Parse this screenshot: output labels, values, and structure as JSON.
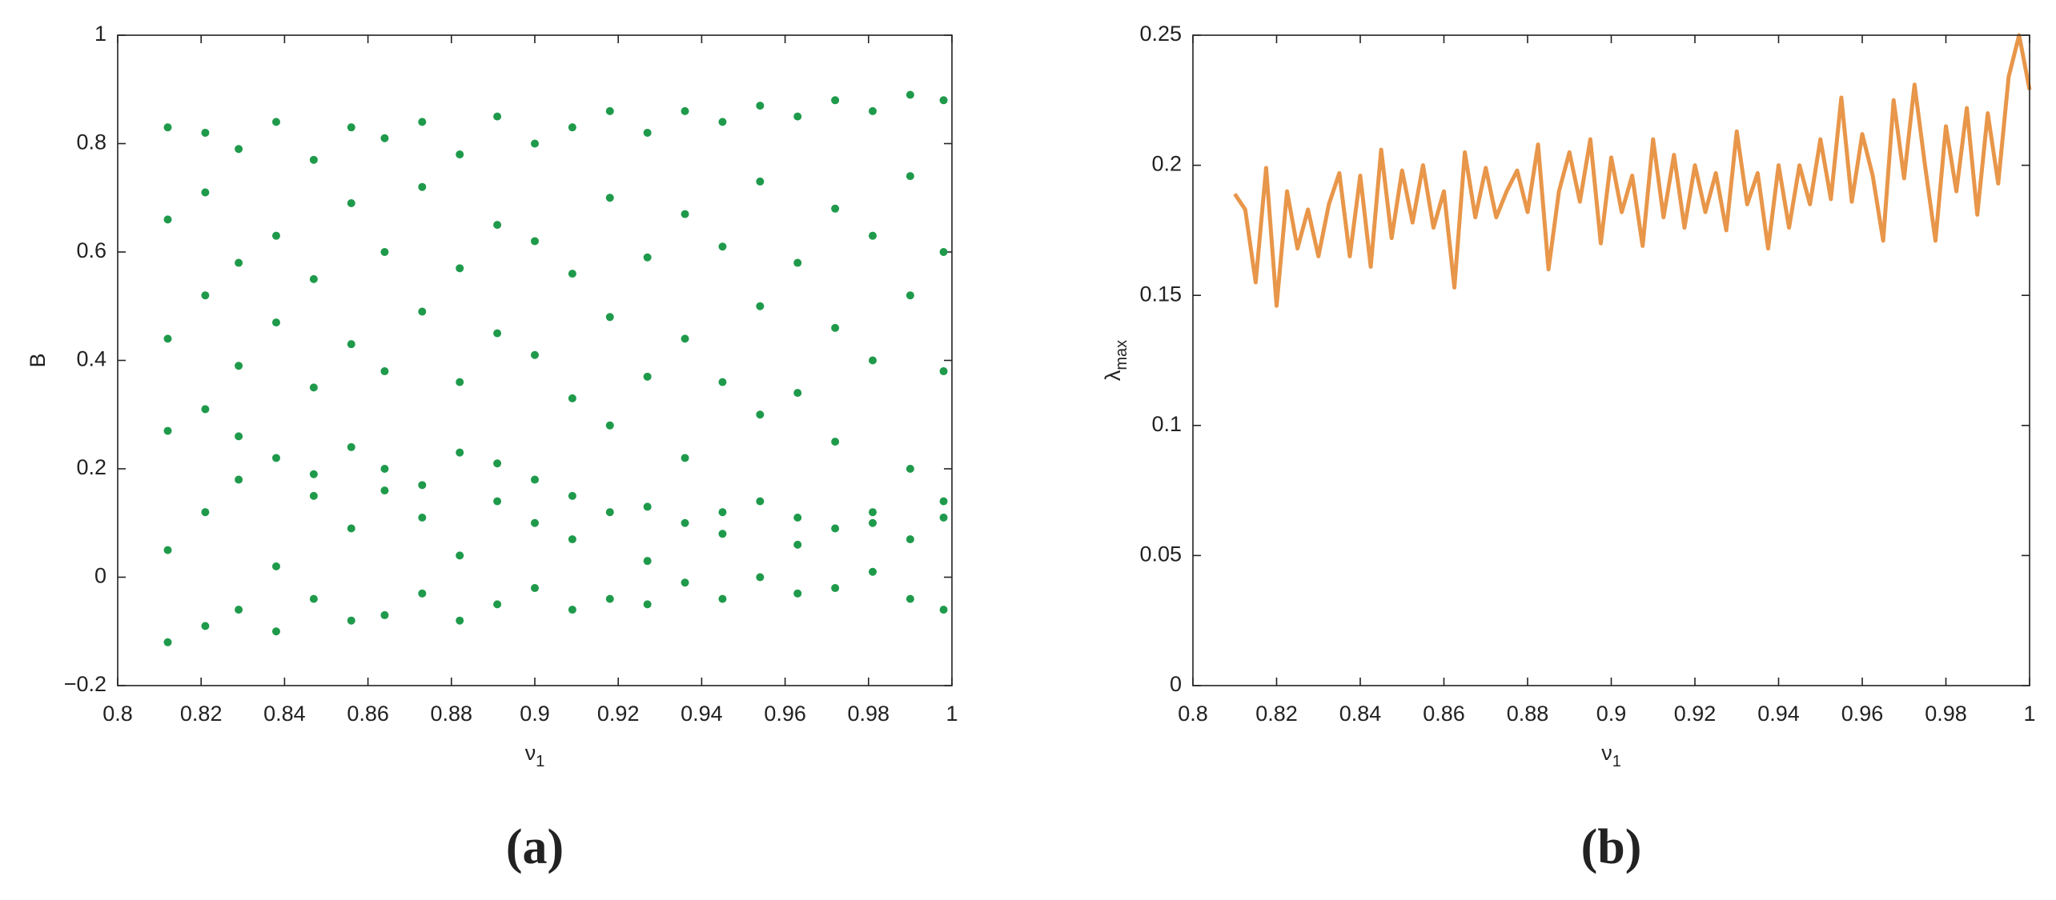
{
  "chart_data": [
    {
      "type": "scatter",
      "caption": "(a)",
      "x_label": {
        "base": "ν",
        "sub": "1"
      },
      "y_label": "B",
      "color": "#1f9a4b",
      "xlim": [
        0.8,
        1
      ],
      "xticks": [
        0.8,
        0.82,
        0.84,
        0.86,
        0.88,
        0.9,
        0.92,
        0.94,
        0.96,
        0.98,
        1
      ],
      "ylim": [
        -0.2,
        1
      ],
      "yticks": [
        {
          "value": -0.2,
          "label": "−0.2"
        },
        0,
        0.2,
        0.4,
        0.6,
        0.8,
        1
      ],
      "x": [
        0.812,
        0.812,
        0.812,
        0.812,
        0.812,
        0.812,
        0.821,
        0.821,
        0.821,
        0.821,
        0.821,
        0.821,
        0.829,
        0.829,
        0.829,
        0.829,
        0.829,
        0.829,
        0.838,
        0.838,
        0.838,
        0.838,
        0.838,
        0.838,
        0.847,
        0.847,
        0.847,
        0.847,
        0.847,
        0.847,
        0.856,
        0.856,
        0.856,
        0.856,
        0.856,
        0.856,
        0.864,
        0.864,
        0.864,
        0.864,
        0.864,
        0.864,
        0.873,
        0.873,
        0.873,
        0.873,
        0.873,
        0.873,
        0.882,
        0.882,
        0.882,
        0.882,
        0.882,
        0.882,
        0.891,
        0.891,
        0.891,
        0.891,
        0.891,
        0.891,
        0.9,
        0.9,
        0.9,
        0.9,
        0.9,
        0.9,
        0.909,
        0.909,
        0.909,
        0.909,
        0.909,
        0.909,
        0.918,
        0.918,
        0.918,
        0.918,
        0.918,
        0.918,
        0.927,
        0.927,
        0.927,
        0.927,
        0.927,
        0.927,
        0.936,
        0.936,
        0.936,
        0.936,
        0.936,
        0.936,
        0.945,
        0.945,
        0.945,
        0.945,
        0.945,
        0.945,
        0.954,
        0.954,
        0.954,
        0.954,
        0.954,
        0.954,
        0.963,
        0.963,
        0.963,
        0.963,
        0.963,
        0.963,
        0.972,
        0.972,
        0.972,
        0.972,
        0.972,
        0.972,
        0.981,
        0.981,
        0.981,
        0.981,
        0.981,
        0.981,
        0.99,
        0.99,
        0.99,
        0.99,
        0.99,
        0.99,
        0.998,
        0.998,
        0.998,
        0.998,
        0.998,
        0.998
      ],
      "values": [
        -0.12,
        0.05,
        0.27,
        0.44,
        0.66,
        0.83,
        -0.09,
        0.12,
        0.31,
        0.52,
        0.71,
        0.82,
        -0.06,
        0.18,
        0.26,
        0.39,
        0.58,
        0.79,
        -0.1,
        0.02,
        0.22,
        0.47,
        0.63,
        0.84,
        -0.04,
        0.15,
        0.19,
        0.35,
        0.55,
        0.77,
        -0.08,
        0.09,
        0.24,
        0.43,
        0.69,
        0.83,
        -0.07,
        0.16,
        0.2,
        0.38,
        0.6,
        0.81,
        -0.03,
        0.11,
        0.17,
        0.49,
        0.72,
        0.84,
        -0.08,
        0.04,
        0.23,
        0.36,
        0.57,
        0.78,
        -0.05,
        0.14,
        0.21,
        0.45,
        0.65,
        0.85,
        -0.02,
        0.1,
        0.18,
        0.41,
        0.62,
        0.8,
        -0.06,
        0.07,
        0.15,
        0.33,
        0.56,
        0.83,
        -0.04,
        0.12,
        0.28,
        0.48,
        0.7,
        0.86,
        -0.05,
        0.03,
        0.13,
        0.37,
        0.59,
        0.82,
        -0.01,
        0.1,
        0.22,
        0.44,
        0.67,
        0.86,
        -0.04,
        0.08,
        0.12,
        0.36,
        0.61,
        0.84,
        0,
        0.14,
        0.3,
        0.5,
        0.73,
        0.87,
        -0.03,
        0.06,
        0.11,
        0.34,
        0.58,
        0.85,
        -0.02,
        0.09,
        0.25,
        0.46,
        0.68,
        0.88,
        0.01,
        0.12,
        0.1,
        0.4,
        0.63,
        0.86,
        -0.04,
        0.07,
        0.2,
        0.52,
        0.74,
        0.89,
        -0.06,
        0.11,
        0.14,
        0.38,
        0.6,
        0.88
      ]
    },
    {
      "type": "line",
      "caption": "(b)",
      "x_label": {
        "base": "ν",
        "sub": "1"
      },
      "y_label": {
        "base": "λ",
        "sub": "max"
      },
      "color": "#e8964a",
      "xlim": [
        0.8,
        1
      ],
      "xticks": [
        0.8,
        0.82,
        0.84,
        0.86,
        0.88,
        0.9,
        0.92,
        0.94,
        0.96,
        0.98,
        1
      ],
      "ylim": [
        0,
        0.25
      ],
      "yticks": [
        0,
        0.05,
        0.1,
        0.15,
        0.2,
        0.25
      ],
      "x": [
        0.81,
        0.8125,
        0.815,
        0.8175,
        0.82,
        0.8225,
        0.825,
        0.8275,
        0.83,
        0.8325,
        0.835,
        0.8375,
        0.84,
        0.8425,
        0.845,
        0.8475,
        0.85,
        0.8525,
        0.855,
        0.8575,
        0.86,
        0.8625,
        0.865,
        0.8675,
        0.87,
        0.8725,
        0.875,
        0.8775,
        0.88,
        0.8825,
        0.885,
        0.8875,
        0.89,
        0.8925,
        0.895,
        0.8975,
        0.9,
        0.9025,
        0.905,
        0.9075,
        0.91,
        0.9125,
        0.915,
        0.9175,
        0.92,
        0.9225,
        0.925,
        0.9275,
        0.93,
        0.9325,
        0.935,
        0.9375,
        0.94,
        0.9425,
        0.945,
        0.9475,
        0.95,
        0.9525,
        0.955,
        0.9575,
        0.96,
        0.9625,
        0.965,
        0.9675,
        0.97,
        0.9725,
        0.975,
        0.9775,
        0.98,
        0.9825,
        0.985,
        0.9875,
        0.99,
        0.9925,
        0.995,
        0.9975,
        1
      ],
      "values": [
        0.189,
        0.183,
        0.155,
        0.199,
        0.146,
        0.19,
        0.168,
        0.183,
        0.165,
        0.185,
        0.197,
        0.165,
        0.196,
        0.161,
        0.206,
        0.172,
        0.198,
        0.178,
        0.2,
        0.176,
        0.19,
        0.153,
        0.205,
        0.18,
        0.199,
        0.18,
        0.19,
        0.198,
        0.182,
        0.208,
        0.16,
        0.19,
        0.205,
        0.186,
        0.21,
        0.17,
        0.203,
        0.182,
        0.196,
        0.169,
        0.21,
        0.18,
        0.204,
        0.176,
        0.2,
        0.182,
        0.197,
        0.175,
        0.213,
        0.185,
        0.197,
        0.168,
        0.2,
        0.176,
        0.2,
        0.185,
        0.21,
        0.187,
        0.226,
        0.186,
        0.212,
        0.196,
        0.171,
        0.225,
        0.195,
        0.231,
        0.2,
        0.171,
        0.215,
        0.19,
        0.222,
        0.181,
        0.22,
        0.193,
        0.234,
        0.25,
        0.229
      ]
    }
  ]
}
